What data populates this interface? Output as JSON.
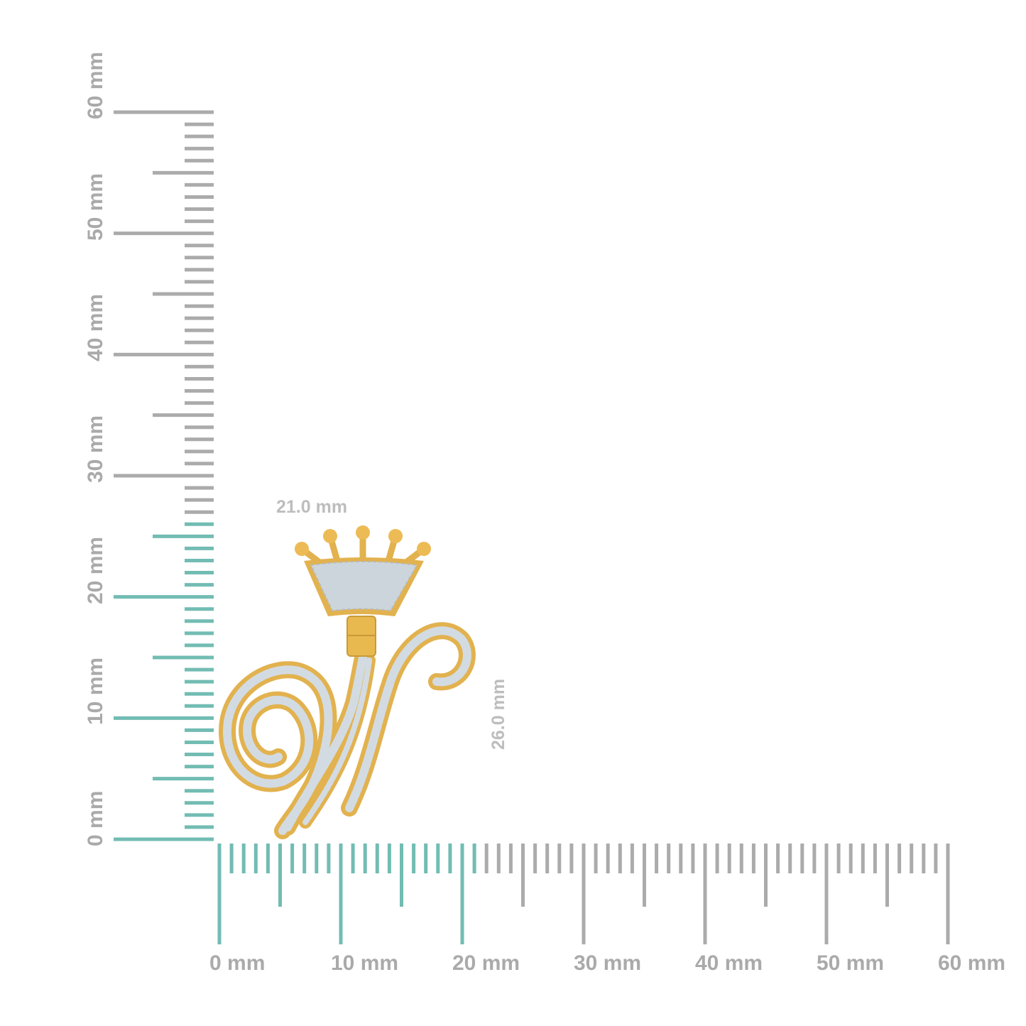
{
  "ruler": {
    "max_mm": 60,
    "colors": {
      "highlight": "#72bcb3",
      "normal": "#ababab"
    },
    "horizontal": {
      "highlight_to_mm": 21,
      "labels": [
        "0 mm",
        "10 mm",
        "20 mm",
        "30 mm",
        "40 mm",
        "50 mm",
        "60 mm"
      ]
    },
    "vertical": {
      "highlight_to_mm": 26,
      "labels": [
        "0 mm",
        "10 mm",
        "20 mm",
        "30 mm",
        "40 mm",
        "50 mm",
        "60 mm"
      ]
    }
  },
  "dimensions": {
    "width": "21.0 mm",
    "height": "26.0 mm"
  },
  "product": {
    "description_icon": "crown-letter-w-pendant",
    "metal_color": "#e2b24f",
    "stone_color": "#d3dbe2"
  }
}
